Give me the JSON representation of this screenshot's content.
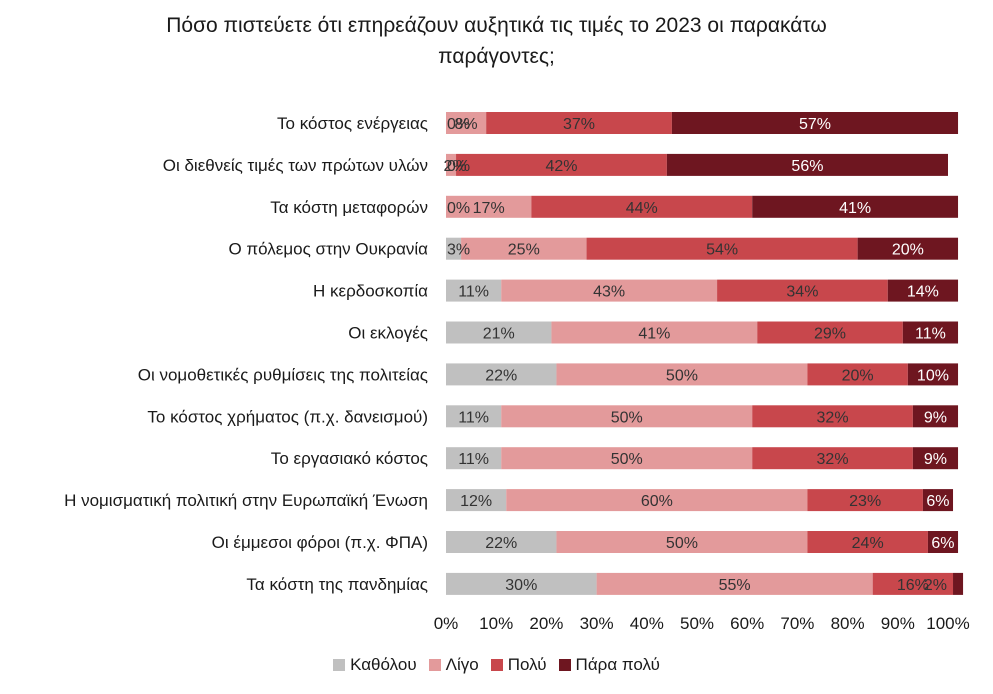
{
  "chart_data": {
    "type": "bar",
    "orientation": "horizontal",
    "stacked": true,
    "title_lines": [
      "Πόσο πιστεύετε ότι επηρεάζουν αυξητικά τις τιμές το 2023 οι παρακάτω",
      "παράγοντες;"
    ],
    "categories": [
      "Το κόστος ενέργειας",
      "Οι διεθνείς τιμές των πρώτων υλών",
      "Τα κόστη μεταφορών",
      "Ο πόλεμος στην Ουκρανία",
      "Η κερδοσκοπία",
      "Οι εκλογές",
      "Οι νομοθετικές ρυθμίσεις της πολιτείας",
      "Το κόστος χρήματος (π.χ. δανεισμού)",
      "Το εργασιακό κόστος",
      "Η νομισματική πολιτική στην Ευρωπαϊκή Ένωση",
      "Οι έμμεσοι φόροι (π.χ. ΦΠΑ)",
      "Τα κόστη της πανδημίας"
    ],
    "series": [
      {
        "name": "Καθόλου",
        "color": "#c0c0c0",
        "label_color": "#333333",
        "values": [
          0,
          0,
          0,
          3,
          11,
          21,
          22,
          11,
          11,
          12,
          22,
          30
        ],
        "labels": [
          "0%",
          "0%",
          "0%",
          "3%",
          "11%",
          "21%",
          "22%",
          "11%",
          "11%",
          "12%",
          "22%",
          "30%"
        ]
      },
      {
        "name": "Λίγο",
        "color": "#e39a9b",
        "label_color": "#333333",
        "values": [
          8,
          2,
          17,
          25,
          43,
          41,
          50,
          50,
          50,
          60,
          50,
          55
        ],
        "labels": [
          "8%",
          "2%",
          "17%",
          "25%",
          "43%",
          "41%",
          "50%",
          "50%",
          "50%",
          "60%",
          "50%",
          "55%"
        ]
      },
      {
        "name": "Πολύ",
        "color": "#c8474c",
        "label_color": "#333333",
        "values": [
          37,
          42,
          44,
          54,
          34,
          29,
          20,
          32,
          32,
          23,
          24,
          16
        ],
        "labels": [
          "37%",
          "42%",
          "44%",
          "54%",
          "34%",
          "29%",
          "20%",
          "32%",
          "32%",
          "23%",
          "24%",
          "16%"
        ]
      },
      {
        "name": "Πάρα πολύ",
        "color": "#6e1620",
        "label_color": "#ffffff",
        "values": [
          57,
          56,
          41,
          20,
          14,
          11,
          10,
          9,
          9,
          6,
          6,
          2
        ],
        "labels": [
          "57%",
          "56%",
          "41%",
          "20%",
          "14%",
          "11%",
          "10%",
          "9%",
          "9%",
          "6%",
          "6%",
          "2%"
        ]
      }
    ],
    "x_ticks": [
      "0%",
      "10%",
      "20%",
      "30%",
      "40%",
      "50%",
      "60%",
      "70%",
      "80%",
      "90%",
      "100%"
    ],
    "xlim": [
      0,
      100
    ],
    "grid": false,
    "legend_position": "bottom"
  }
}
